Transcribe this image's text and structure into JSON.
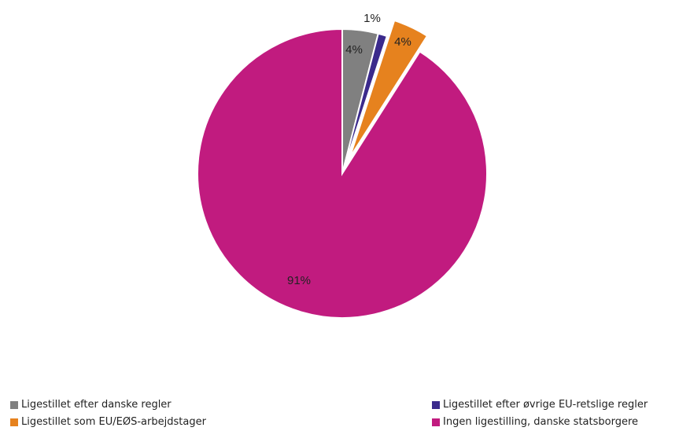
{
  "chart_data": {
    "type": "pie",
    "title": "",
    "slices": [
      {
        "name": "Ligestillet efter danske regler",
        "value": 4,
        "label": "4%",
        "color": "#808080",
        "exploded": false
      },
      {
        "name": "Ligestillet efter øvrige EU-retslige regler",
        "value": 1,
        "label": "1%",
        "color": "#3B2A8C",
        "exploded": false
      },
      {
        "name": "Ligestillet som EU/EØS-arbejdstager",
        "value": 4,
        "label": "4%",
        "color": "#E6821E",
        "exploded": true
      },
      {
        "name": "Ingen ligestilling, danske statsborgere",
        "value": 91,
        "label": "91%",
        "color": "#C11B7F",
        "exploded": false
      }
    ],
    "legend_position": "bottom"
  }
}
